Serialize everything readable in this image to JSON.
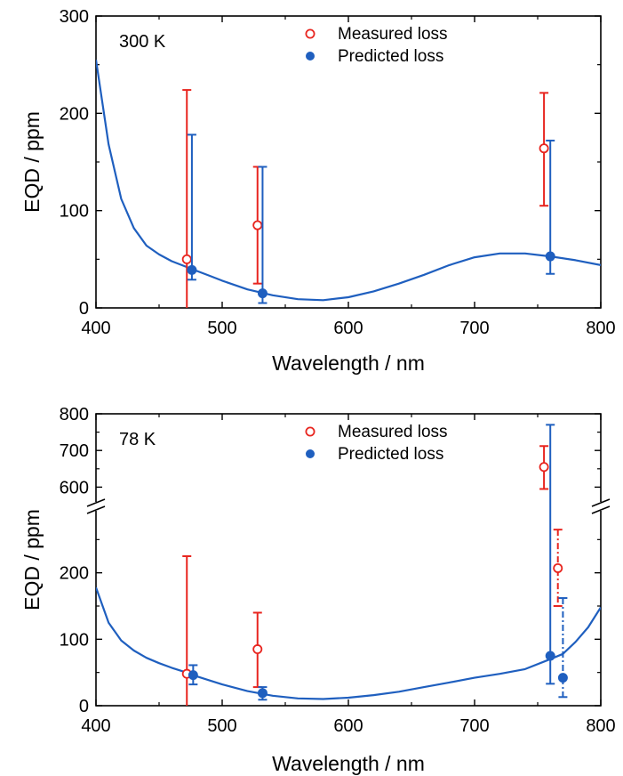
{
  "chart_data": [
    {
      "type": "scatter",
      "annotation": "300 K",
      "xlabel": "Wavelength / nm",
      "ylabel": "EQD / ppm",
      "xlim": [
        400,
        800
      ],
      "ylim": [
        0,
        300
      ],
      "xticks": [
        "400",
        "500",
        "600",
        "700",
        "800"
      ],
      "yticks": [
        "0",
        "100",
        "200",
        "300"
      ],
      "legend_position": "top-center",
      "colors": {
        "measured": "#e8251f",
        "predicted": "#1f5fbf"
      },
      "curve": {
        "x": [
          400,
          410,
          420,
          430,
          440,
          450,
          460,
          470,
          480,
          490,
          500,
          520,
          540,
          560,
          580,
          600,
          620,
          640,
          660,
          680,
          700,
          720,
          740,
          760,
          780,
          800
        ],
        "y": [
          255,
          168,
          112,
          82,
          64,
          55,
          48,
          43,
          38,
          33,
          28,
          19,
          13,
          9,
          8,
          11,
          17,
          25,
          34,
          44,
          52,
          56,
          56,
          53,
          49,
          44
        ]
      },
      "series": [
        {
          "name": "Measured loss",
          "marker": "open-circle",
          "points": [
            {
              "x": 472,
              "y": 50,
              "err_low": 0,
              "err_high": 224
            },
            {
              "x": 528,
              "y": 85,
              "err_low": 25,
              "err_high": 145
            },
            {
              "x": 755,
              "y": 164,
              "err_low": 105,
              "err_high": 221
            }
          ]
        },
        {
          "name": "Predicted loss",
          "marker": "filled-circle",
          "points": [
            {
              "x": 476,
              "y": 39,
              "err_low": 29,
              "err_high": 178
            },
            {
              "x": 532,
              "y": 15,
              "err_low": 5,
              "err_high": 145
            },
            {
              "x": 760,
              "y": 53,
              "err_low": 35,
              "err_high": 172
            }
          ]
        }
      ]
    },
    {
      "type": "scatter",
      "annotation": "78 K",
      "xlabel": "Wavelength / nm",
      "ylabel": "EQD / ppm",
      "xlim": [
        400,
        800
      ],
      "ylim_lower": [
        0,
        300
      ],
      "ylim_upper": [
        550,
        800
      ],
      "broken_axis": true,
      "xticks": [
        "400",
        "500",
        "600",
        "700",
        "800"
      ],
      "yticks_lower": [
        "0",
        "100",
        "200"
      ],
      "yticks_upper": [
        "600",
        "700",
        "800"
      ],
      "legend_position": "top-center",
      "colors": {
        "measured": "#e8251f",
        "predicted": "#1f5fbf"
      },
      "curve": {
        "x": [
          400,
          410,
          420,
          430,
          440,
          450,
          460,
          470,
          480,
          500,
          520,
          540,
          560,
          580,
          600,
          620,
          640,
          660,
          680,
          700,
          720,
          740,
          760,
          770,
          780,
          790,
          800
        ],
        "y": [
          178,
          125,
          98,
          83,
          72,
          64,
          57,
          51,
          44,
          32,
          22,
          15,
          11,
          10,
          12,
          16,
          21,
          28,
          35,
          42,
          48,
          55,
          70,
          78,
          96,
          118,
          148
        ]
      },
      "series": [
        {
          "name": "Measured loss",
          "marker": "open-circle",
          "points": [
            {
              "x": 472,
              "y": 48,
              "err_low": 0,
              "err_high": 225
            },
            {
              "x": 528,
              "y": 85,
              "err_low": 28,
              "err_high": 140
            },
            {
              "x": 755,
              "y": 655,
              "err_low": 595,
              "err_high": 712
            },
            {
              "x": 766,
              "y": 207,
              "err_low": 150,
              "err_high": 265,
              "dashed": true
            }
          ]
        },
        {
          "name": "Predicted loss",
          "marker": "filled-circle",
          "points": [
            {
              "x": 477,
              "y": 46,
              "err_low": 32,
              "err_high": 61
            },
            {
              "x": 532,
              "y": 19,
              "err_low": 9,
              "err_high": 28
            },
            {
              "x": 760,
              "y": 75,
              "err_low": 33,
              "err_high": 770
            },
            {
              "x": 770,
              "y": 42,
              "err_low": 13,
              "err_high": 162,
              "dashed": true
            }
          ]
        }
      ]
    }
  ]
}
